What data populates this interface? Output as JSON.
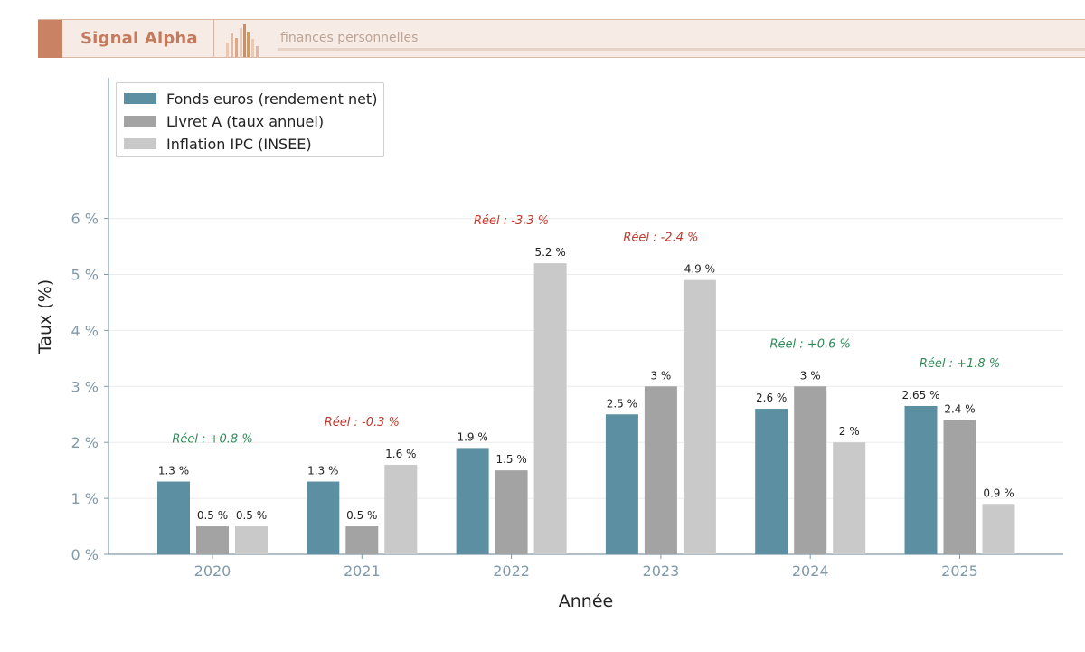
{
  "header": {
    "brand": "Signal Alpha",
    "tagline": "finances personnelles"
  },
  "colors": {
    "fonds": "#5b8fa1",
    "livret": "#a3a3a3",
    "inflation": "#c9c9c9",
    "negative": "#c0392b",
    "positive": "#2e8b57",
    "axis": "#7f9aaa",
    "brand": "#c98263"
  },
  "chart_data": {
    "type": "bar",
    "categories": [
      "2020",
      "2021",
      "2022",
      "2023",
      "2024",
      "2025"
    ],
    "series": [
      {
        "name": "Fonds euros (rendement net)",
        "values": [
          1.3,
          1.3,
          1.9,
          2.5,
          2.6,
          2.65
        ],
        "labels": [
          "1.3 %",
          "1.3 %",
          "1.9 %",
          "2.5 %",
          "2.6 %",
          "2.65 %"
        ]
      },
      {
        "name": "Livret A (taux annuel)",
        "values": [
          0.5,
          0.5,
          1.5,
          3,
          3,
          2.4
        ],
        "labels": [
          "0.5 %",
          "0.5 %",
          "1.5 %",
          "3 %",
          "3 %",
          "2.4 %"
        ]
      },
      {
        "name": "Inflation IPC (INSEE)",
        "values": [
          0.5,
          1.6,
          5.2,
          4.9,
          2,
          0.9
        ],
        "labels": [
          "0.5 %",
          "1.6 %",
          "5.2 %",
          "4.9 %",
          "2 %",
          "0.9 %"
        ]
      }
    ],
    "annotations": [
      "Réel : +0.8 %",
      "Réel : -0.3 %",
      "Réel : -3.3 %",
      "Réel : -2.4 %",
      "Réel : +0.6 %",
      "Réel : +1.8 %"
    ],
    "annotation_values": [
      0.8,
      -0.3,
      -3.3,
      -2.4,
      0.6,
      1.8
    ],
    "xlabel": "Année",
    "ylabel": "Taux (%)",
    "yticks": [
      "0 %",
      "1 %",
      "2 %",
      "3 %",
      "4 %",
      "5 %",
      "6 %"
    ],
    "ylim": [
      0,
      8.1
    ],
    "grid": true,
    "legend": "top-left"
  }
}
